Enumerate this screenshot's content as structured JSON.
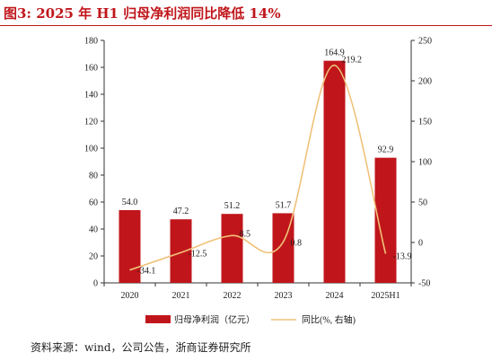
{
  "figure": {
    "title": "图3:  2025 年 H1 归母净利润同比降低 14%",
    "source": "资料来源：wind，公司公告，浙商证券研究所"
  },
  "colors": {
    "accent": "#c0161b",
    "bar": "#c0161b",
    "line": "#f0c27a",
    "axis": "#333333"
  },
  "chart_data": {
    "type": "bar",
    "categories": [
      "2020",
      "2021",
      "2022",
      "2023",
      "2024",
      "2025H1"
    ],
    "series": [
      {
        "name": "归母净利润（亿元）",
        "type": "bar",
        "axis": "left",
        "values": [
          54.0,
          47.2,
          51.2,
          51.7,
          164.9,
          92.9
        ],
        "labels": [
          "54.0",
          "47.2",
          "51.2",
          "51.7",
          "164.9",
          "92.9"
        ]
      },
      {
        "name": "同比(%, 右轴)",
        "type": "line",
        "axis": "right",
        "values": [
          -34.1,
          -12.5,
          8.5,
          0.8,
          219.2,
          -13.9
        ],
        "labels": [
          "-34.1",
          "-12.5",
          "8.5",
          "0.8",
          "219.2",
          "-13.9"
        ]
      }
    ],
    "y_left": {
      "min": 0,
      "max": 180,
      "ticks": [
        "0",
        "20",
        "40",
        "60",
        "80",
        "100",
        "120",
        "140",
        "160",
        "180"
      ]
    },
    "y_right": {
      "min": -50,
      "max": 250,
      "ticks": [
        "-50",
        "0",
        "50",
        "100",
        "150",
        "200",
        "250"
      ]
    },
    "legend_position": "bottom-center",
    "grid": false
  }
}
